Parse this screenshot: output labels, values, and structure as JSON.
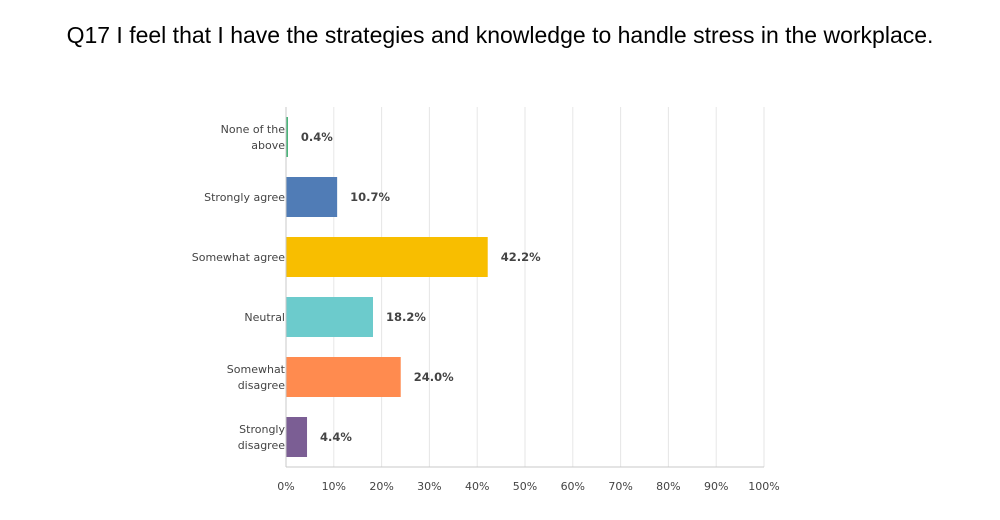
{
  "chart_data": {
    "type": "bar",
    "orientation": "horizontal",
    "title": "Q17 I feel that I have the strategies and knowledge to handle stress in the workplace.",
    "categories": [
      [
        "None of the",
        "above"
      ],
      [
        "Strongly agree"
      ],
      [
        "Somewhat agree"
      ],
      [
        "Neutral"
      ],
      [
        "Somewhat",
        "disagree"
      ],
      [
        "Strongly",
        "disagree"
      ]
    ],
    "values": [
      0.4,
      10.7,
      42.2,
      18.2,
      24.0,
      4.4
    ],
    "value_labels": [
      "0.4%",
      "10.7%",
      "42.2%",
      "18.2%",
      "24.0%",
      "4.4%"
    ],
    "colors": [
      "#3aae6f",
      "#507cb6",
      "#f8be00",
      "#6ccbcc",
      "#ff8b4f",
      "#7b5e94"
    ],
    "xlim": [
      0,
      100
    ],
    "x_ticks": [
      "0%",
      "10%",
      "20%",
      "30%",
      "40%",
      "50%",
      "60%",
      "70%",
      "80%",
      "90%",
      "100%"
    ],
    "grid": true,
    "xlabel": "",
    "ylabel": ""
  }
}
